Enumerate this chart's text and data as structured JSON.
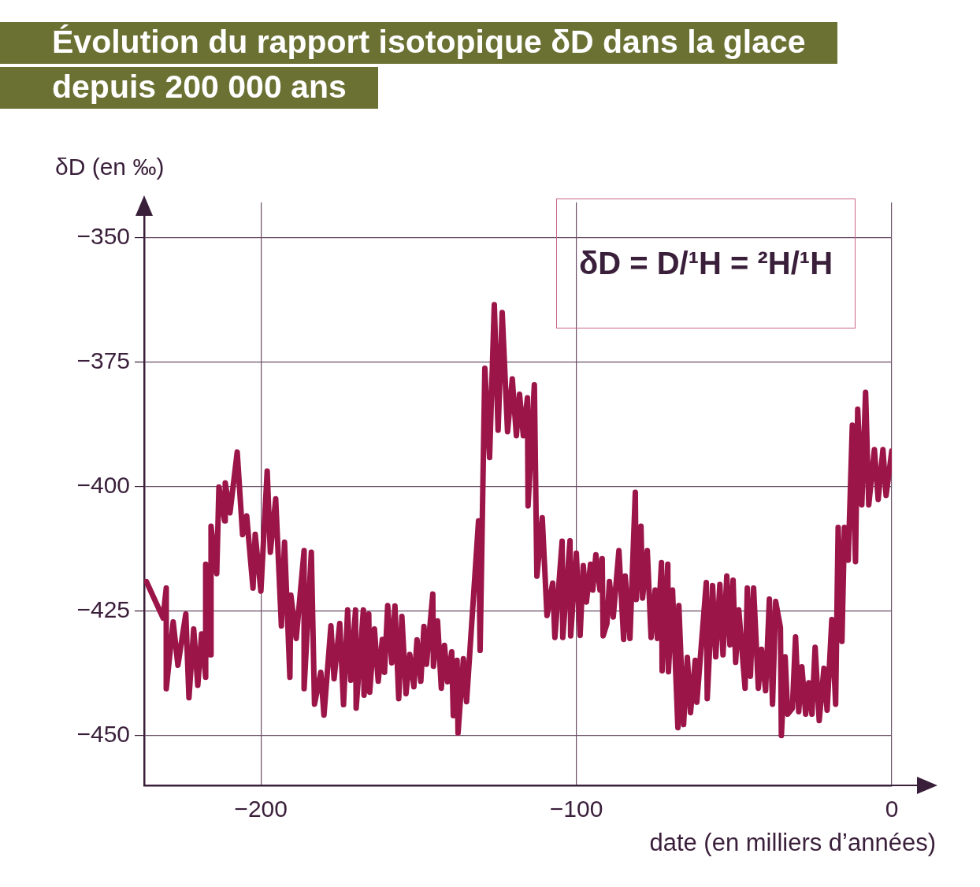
{
  "chart_data": {
    "type": "line",
    "title": "Évolution du rapport isotopique δD dans la glace\ndepuis 200 000 ans",
    "ylabel": "δD (en ‰)",
    "xlabel": "date (en milliers d’années)",
    "annotations": [
      "δD = D/¹H = ²H/¹H"
    ],
    "xlim": [
      -237,
      0
    ],
    "xticks": [
      {
        "value": -200,
        "label": "−200"
      },
      {
        "value": -100,
        "label": "−100"
      },
      0
    ],
    "ylim": [
      -460,
      -343
    ],
    "yticks": [
      {
        "value": -350,
        "label": "−350"
      },
      {
        "value": -375,
        "label": "−375"
      },
      {
        "value": -400,
        "label": "−400"
      },
      {
        "value": -425,
        "label": "−425"
      },
      {
        "value": -450,
        "label": "−450"
      }
    ],
    "grid": true,
    "legend": false,
    "marker": "none",
    "line_style": "solid",
    "series": [
      {
        "color": "#9b1548",
        "x": [
          -236.3,
          -231.0,
          -230.0,
          -230.0,
          -227.8,
          -226.3,
          -223.8,
          -222.8,
          -221.3,
          -220.0,
          -218.8,
          -217.5,
          -217.5,
          -216.0,
          -215.8,
          -214.0,
          -213.3,
          -211.5,
          -211.3,
          -209.8,
          -207.5,
          -205.8,
          -204.5,
          -202.5,
          -201.8,
          -200.0,
          -198.0,
          -197.0,
          -195.3,
          -193.5,
          -192.5,
          -190.8,
          -190.5,
          -188.8,
          -186.3,
          -186.3,
          -184.0,
          -183.0,
          -181.0,
          -180.0,
          -177.8,
          -176.8,
          -175.0,
          -173.8,
          -172.5,
          -171.5,
          -170.0,
          -169.8,
          -167.5,
          -167.3,
          -165.8,
          -165.5,
          -164.0,
          -162.8,
          -161.5,
          -160.8,
          -159.8,
          -158.5,
          -157.5,
          -156.3,
          -155.3,
          -154.0,
          -152.8,
          -151.5,
          -150.5,
          -149.3,
          -148.3,
          -147.5,
          -145.5,
          -145.3,
          -144.0,
          -142.8,
          -141.8,
          -140.8,
          -139.5,
          -139.0,
          -137.8,
          -137.5,
          -135.8,
          -134.8,
          -131.0,
          -130.5,
          -129.0,
          -127.5,
          -126.0,
          -124.8,
          -123.5,
          -121.8,
          -120.3,
          -119.0,
          -118.0,
          -116.8,
          -115.5,
          -115.3,
          -113.3,
          -112.5,
          -110.8,
          -109.3,
          -107.5,
          -106.8,
          -104.5,
          -104.3,
          -102.0,
          -101.8,
          -100.0,
          -98.8,
          -97.8,
          -96.8,
          -95.5,
          -94.8,
          -93.8,
          -92.5,
          -91.8,
          -91.5,
          -90.3,
          -89.5,
          -88.3,
          -86.5,
          -85.0,
          -84.5,
          -83.0,
          -81.3,
          -81.0,
          -79.5,
          -79.0,
          -77.5,
          -76.3,
          -75.0,
          -74.3,
          -73.0,
          -72.8,
          -71.0,
          -70.8,
          -69.5,
          -67.8,
          -67.5,
          -66.0,
          -64.8,
          -63.8,
          -62.3,
          -61.8,
          -58.8,
          -58.5,
          -56.8,
          -55.8,
          -54.5,
          -53.5,
          -52.3,
          -51.3,
          -50.3,
          -49.5,
          -48.5,
          -46.5,
          -45.8,
          -44.8,
          -43.8,
          -42.3,
          -41.3,
          -40.0,
          -38.8,
          -37.8,
          -36.8,
          -35.3,
          -35.0,
          -33.8,
          -33.0,
          -31.5,
          -30.5,
          -29.5,
          -28.5,
          -27.3,
          -26.3,
          -25.3,
          -24.3,
          -23.0,
          -21.5,
          -20.5,
          -19.0,
          -17.8,
          -17.0,
          -15.8,
          -15.0,
          -13.8,
          -12.5,
          -11.5,
          -10.8,
          -9.5,
          -8.3,
          -7.3,
          -5.5,
          -4.3,
          -2.8,
          -1.8,
          0
        ],
        "values": [
          -419.1,
          -426.4,
          -420.4,
          -440.6,
          -427.2,
          -435.9,
          -425.6,
          -442.4,
          -428.6,
          -439.9,
          -429.6,
          -438.3,
          -415.6,
          -433.8,
          -408.0,
          -417.5,
          -400.1,
          -406.9,
          -399.3,
          -405.3,
          -393.1,
          -409.7,
          -405.9,
          -420.4,
          -409.6,
          -421.0,
          -396.9,
          -413.2,
          -402.5,
          -428.0,
          -411.2,
          -438.3,
          -421.8,
          -430.5,
          -412.9,
          -440.6,
          -413.2,
          -443.7,
          -437.3,
          -445.9,
          -428.0,
          -438.6,
          -427.5,
          -443.8,
          -424.8,
          -438.9,
          -424.8,
          -444.5,
          -424.8,
          -441.9,
          -425.6,
          -441.3,
          -428.6,
          -439.1,
          -430.7,
          -437.3,
          -423.9,
          -435.4,
          -424.0,
          -442.6,
          -426.1,
          -441.6,
          -433.7,
          -440.2,
          -430.8,
          -439.1,
          -428.1,
          -435.7,
          -421.6,
          -436.1,
          -427.0,
          -440.5,
          -431.9,
          -439.2,
          -433.2,
          -446.0,
          -434.9,
          -449.5,
          -434.6,
          -443.2,
          -406.9,
          -432.9,
          -376.3,
          -394.2,
          -363.5,
          -388.7,
          -365.1,
          -389.0,
          -378.4,
          -389.8,
          -381.5,
          -389.8,
          -382.2,
          -403.9,
          -379.6,
          -418.0,
          -406.3,
          -425.9,
          -419.4,
          -430.3,
          -411.0,
          -430.3,
          -410.9,
          -430.0,
          -413.4,
          -429.9,
          -415.9,
          -423.2,
          -415.6,
          -420.8,
          -413.7,
          -420.8,
          -414.5,
          -430.0,
          -427.5,
          -419.1,
          -426.2,
          -412.9,
          -430.7,
          -418.0,
          -430.5,
          -401.2,
          -422.7,
          -408.0,
          -422.4,
          -412.9,
          -430.3,
          -420.8,
          -430.5,
          -415.3,
          -437.0,
          -415.6,
          -437.2,
          -420.8,
          -448.4,
          -423.9,
          -447.8,
          -434.3,
          -445.4,
          -434.9,
          -443.3,
          -419.3,
          -442.6,
          -419.9,
          -434.2,
          -419.7,
          -433.8,
          -418.0,
          -431.8,
          -418.8,
          -435.3,
          -424.8,
          -440.5,
          -420.4,
          -438.1,
          -420.4,
          -440.5,
          -432.7,
          -441.0,
          -422.6,
          -443.7,
          -423.1,
          -428.3,
          -450.0,
          -434.2,
          -445.7,
          -444.5,
          -430.2,
          -445.2,
          -436.2,
          -445.7,
          -439.4,
          -445.7,
          -432.3,
          -447.0,
          -436.5,
          -444.9,
          -426.7,
          -443.7,
          -408.2,
          -431.1,
          -408.2,
          -414.8,
          -387.7,
          -415.1,
          -384.5,
          -403.7,
          -381.1,
          -403.7,
          -392.6,
          -402.6,
          -392.6,
          -401.8,
          -392.9
        ]
      }
    ]
  }
}
